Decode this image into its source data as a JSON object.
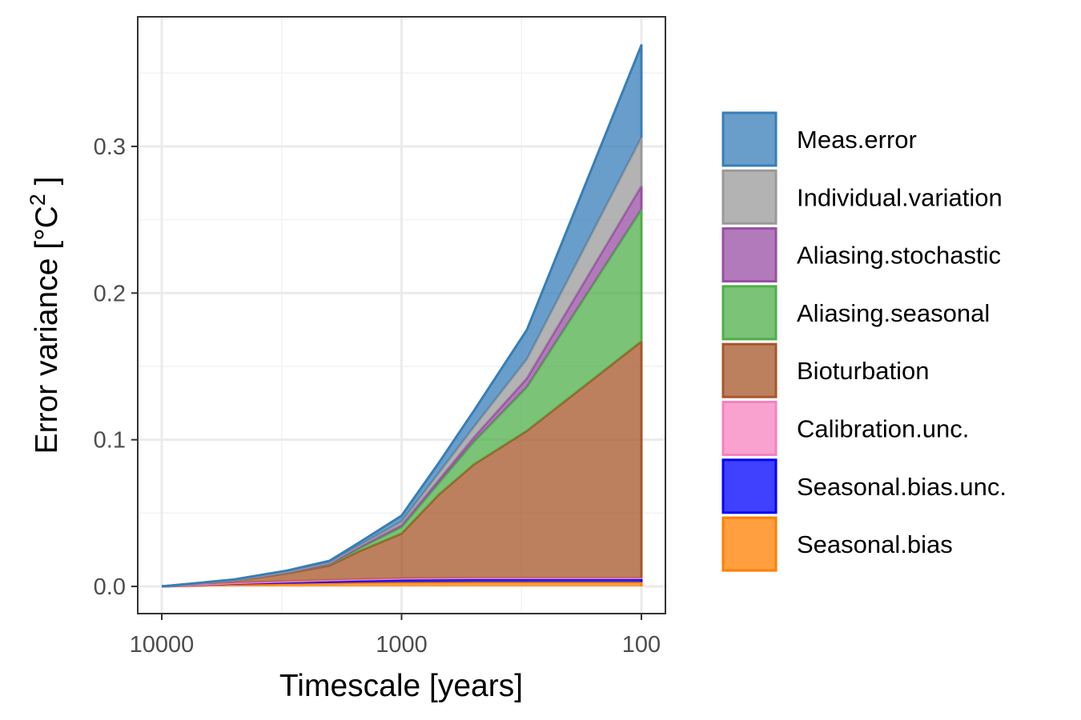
{
  "chart_data": {
    "type": "area",
    "stacked": true,
    "x_scale": "log-reversed",
    "xlabel": "Timescale [years]",
    "ylabel": "Error variance [°C",
    "ylabel_sup": "2",
    "ylabel_close": " ]",
    "xlim": [
      10000,
      100
    ],
    "ylim": [
      -0.017,
      0.38
    ],
    "x_ticks": [
      10000,
      1000,
      100
    ],
    "x_tick_labels": [
      "10000",
      "1000",
      "100"
    ],
    "y_ticks": [
      0.0,
      0.1,
      0.2,
      0.3
    ],
    "y_tick_labels": [
      "0.0",
      "0.1",
      "0.2",
      "0.3"
    ],
    "grid": true,
    "legend_position": "right",
    "x": [
      10000,
      5000,
      3000,
      2000,
      1500,
      1000,
      700,
      500,
      300,
      100
    ],
    "series": [
      {
        "name": "Seasonal.bias",
        "color": "#FF7F00",
        "values": [
          0.0,
          0.0012,
          0.0018,
          0.0022,
          0.0025,
          0.0028,
          0.0029,
          0.003,
          0.003,
          0.003
        ]
      },
      {
        "name": "Seasonal.bias.unc.",
        "color": "#0000FF",
        "values": [
          0.0,
          0.0008,
          0.0012,
          0.0015,
          0.0017,
          0.0019,
          0.002,
          0.002,
          0.002,
          0.002
        ]
      },
      {
        "name": "Calibration.unc.",
        "color": "#F781BF",
        "values": [
          0.0,
          0.0003,
          0.0004,
          0.0005,
          0.0006,
          0.0007,
          0.0007,
          0.0007,
          0.0007,
          0.0007
        ]
      },
      {
        "name": "Bioturbation",
        "color": "#A65628",
        "values": [
          0.0,
          0.0015,
          0.0055,
          0.01,
          0.0192,
          0.0306,
          0.0569,
          0.0774,
          0.1004,
          0.1613
        ]
      },
      {
        "name": "Aliasing.seasonal",
        "color": "#4DAF4A",
        "values": [
          0.0,
          0.0002,
          0.0005,
          0.001,
          0.0022,
          0.0045,
          0.0079,
          0.0155,
          0.0299,
          0.09
        ]
      },
      {
        "name": "Aliasing.stochastic",
        "color": "#984EA3",
        "values": [
          0.0,
          0.0001,
          0.0002,
          0.0003,
          0.0006,
          0.0012,
          0.0022,
          0.003,
          0.006,
          0.016
        ]
      },
      {
        "name": "Individual.variation",
        "color": "#999999",
        "values": [
          0.0,
          0.0002,
          0.0004,
          0.0007,
          0.0012,
          0.0025,
          0.0045,
          0.007,
          0.013,
          0.033
        ]
      },
      {
        "name": "Meas.error",
        "color": "#377EB8",
        "values": [
          0.0,
          0.0004,
          0.0008,
          0.0012,
          0.002,
          0.004,
          0.007,
          0.011,
          0.02,
          0.063
        ]
      }
    ],
    "legend_order": [
      "Meas.error",
      "Individual.variation",
      "Aliasing.stochastic",
      "Aliasing.seasonal",
      "Bioturbation",
      "Calibration.unc.",
      "Seasonal.bias.unc.",
      "Seasonal.bias"
    ]
  }
}
